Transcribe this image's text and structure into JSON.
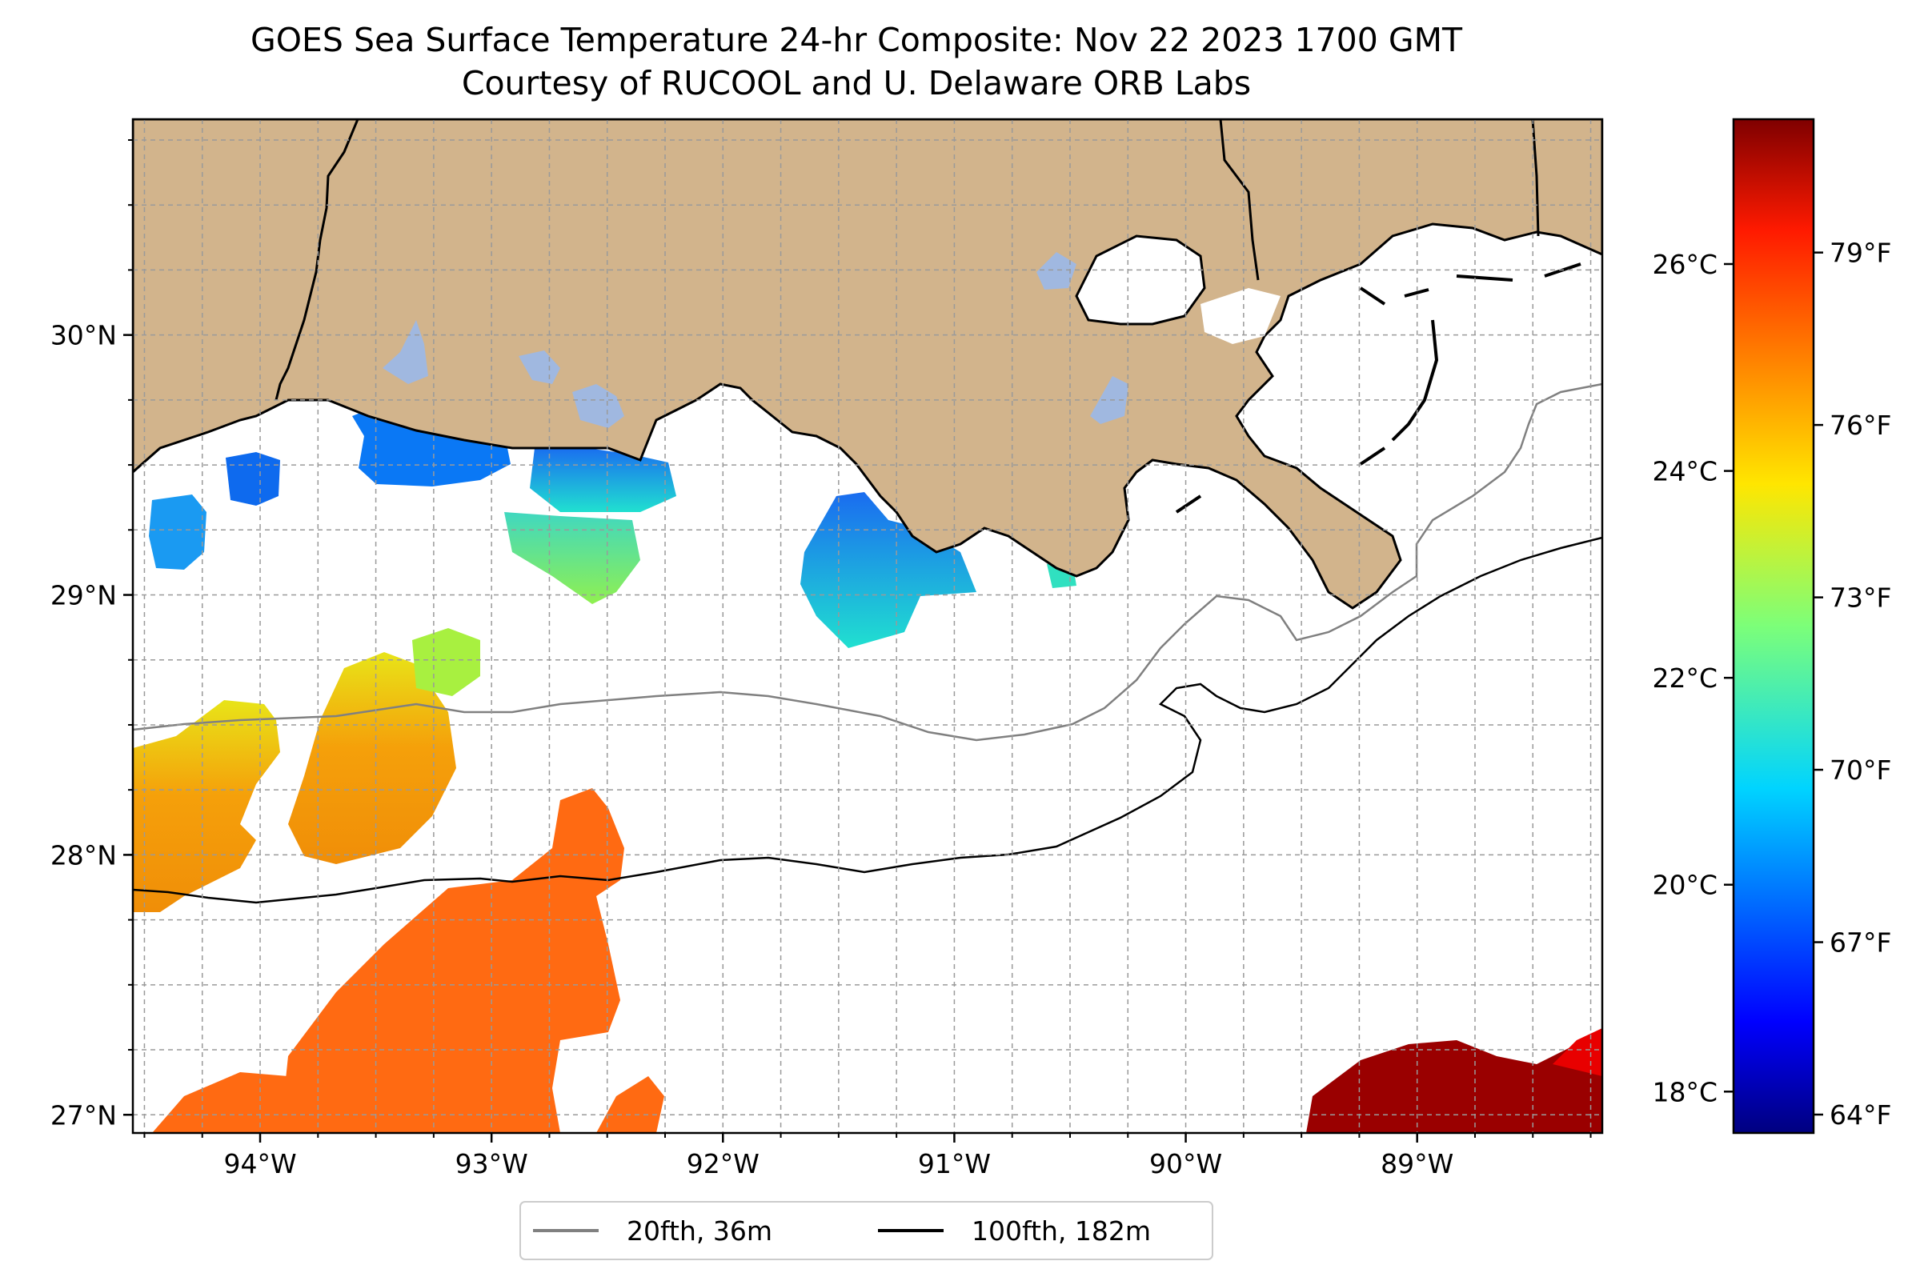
{
  "map": {
    "title_line1": "GOES Sea Surface Temperature 24-hr Composite: Nov 22 2023 1700 GMT",
    "title_line2": "Courtesy of RUCOOL and U. Delaware ORB Labs",
    "extent": {
      "lon": [
        -94.55,
        -88.2
      ],
      "lat": [
        26.93,
        30.83
      ]
    },
    "lat_ticks": [
      {
        "value": 30,
        "label": "30°N"
      },
      {
        "value": 29,
        "label": "29°N"
      },
      {
        "value": 28,
        "label": "28°N"
      },
      {
        "value": 27,
        "label": "27°N"
      }
    ],
    "lon_ticks": [
      {
        "value": -94,
        "label": "94°W"
      },
      {
        "value": -93,
        "label": "93°W"
      },
      {
        "value": -92,
        "label": "92°W"
      },
      {
        "value": -91,
        "label": "91°W"
      },
      {
        "value": -90,
        "label": "90°W"
      },
      {
        "value": -89,
        "label": "89°W"
      }
    ],
    "land_color": "#d2b48c",
    "lake_color": "#a0b8e0",
    "isobaths": [
      {
        "label": "20fth, 36m",
        "color": "#808080"
      },
      {
        "label": "100fth, 182m",
        "color": "#000000"
      }
    ]
  },
  "colorbar": {
    "colormap": "jet",
    "range_c": [
      17.6,
      27.4
    ],
    "celsius_ticks": [
      {
        "value": 18,
        "label": "18°C"
      },
      {
        "value": 20,
        "label": "20°C"
      },
      {
        "value": 22,
        "label": "22°C"
      },
      {
        "value": 24,
        "label": "24°C"
      },
      {
        "value": 26,
        "label": "26°C"
      }
    ],
    "fahrenheit_ticks": [
      {
        "value": 64,
        "label": "64°F"
      },
      {
        "value": 67,
        "label": "67°F"
      },
      {
        "value": 70,
        "label": "70°F"
      },
      {
        "value": 73,
        "label": "73°F"
      },
      {
        "value": 76,
        "label": "76°F"
      },
      {
        "value": 79,
        "label": "79°F"
      }
    ]
  },
  "sst_patches": [
    {
      "name": "sst-patch-sabine-nearshore",
      "sst_c": 19.6
    },
    {
      "name": "sst-patch-calcasieu-nearshore",
      "sst_c": 20.0
    },
    {
      "name": "sst-patch-mermentau-nearshore",
      "sst_c": 19.8
    },
    {
      "name": "sst-patch-vermilion-nearshore",
      "sst_c": 21.0
    },
    {
      "name": "sst-patch-atchafalaya-nearshore",
      "sst_c": 20.2
    },
    {
      "name": "sst-patch-west-shelf-warm",
      "sst_c": 24.5
    },
    {
      "name": "sst-patch-central-shelf-warm",
      "sst_c": 24.8
    },
    {
      "name": "sst-patch-south-shelf",
      "sst_c": 25.4
    },
    {
      "name": "sst-patch-southeast-offshore",
      "sst_c": 27.2
    }
  ]
}
